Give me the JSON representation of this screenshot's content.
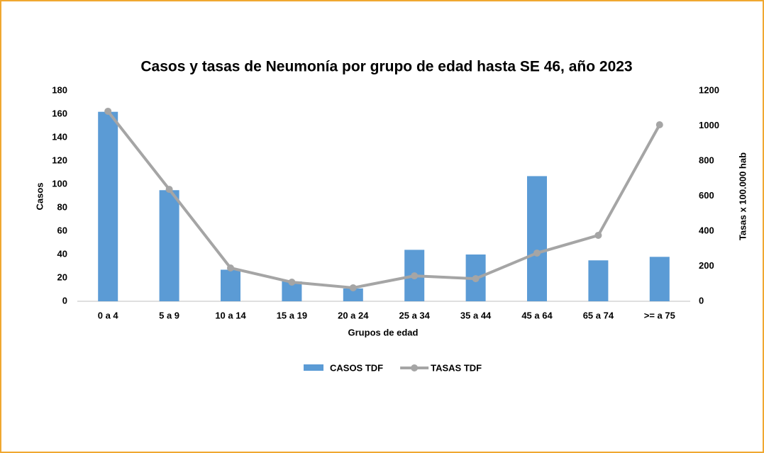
{
  "chart_data": {
    "type": "bar_line",
    "title": "Casos y tasas de Neumonía por grupo de edad hasta SE 46, año 2023",
    "x_label": "Grupos de edad",
    "y_label": "Casos",
    "y2_label": "Tasas x 100.000 hab",
    "categories": [
      "0 a 4",
      "5 a 9",
      "10 a 14",
      "15 a 19",
      "20 a 24",
      "25 a 34",
      "35 a 44",
      "45 a 64",
      "65 a 74",
      ">= a 75"
    ],
    "series": [
      {
        "name": "CASOS TDF",
        "type": "bar",
        "color": "#5b9bd5",
        "values": [
          162,
          95,
          27,
          17,
          11,
          44,
          40,
          107,
          35,
          38
        ]
      },
      {
        "name": "TASAS TDF",
        "type": "line",
        "axis": "y2",
        "color": "#a5a5a5",
        "values": [
          1083,
          638,
          190,
          109,
          77,
          145,
          129,
          275,
          376,
          1006
        ]
      }
    ],
    "ylim": [
      0,
      180
    ],
    "yticks": [
      0,
      20,
      40,
      60,
      80,
      100,
      120,
      140,
      160,
      180
    ],
    "y2lim": [
      0,
      1200
    ],
    "y2ticks": [
      0,
      200,
      400,
      600,
      800,
      1000,
      1200
    ],
    "grid": false,
    "legend": "bottom"
  }
}
